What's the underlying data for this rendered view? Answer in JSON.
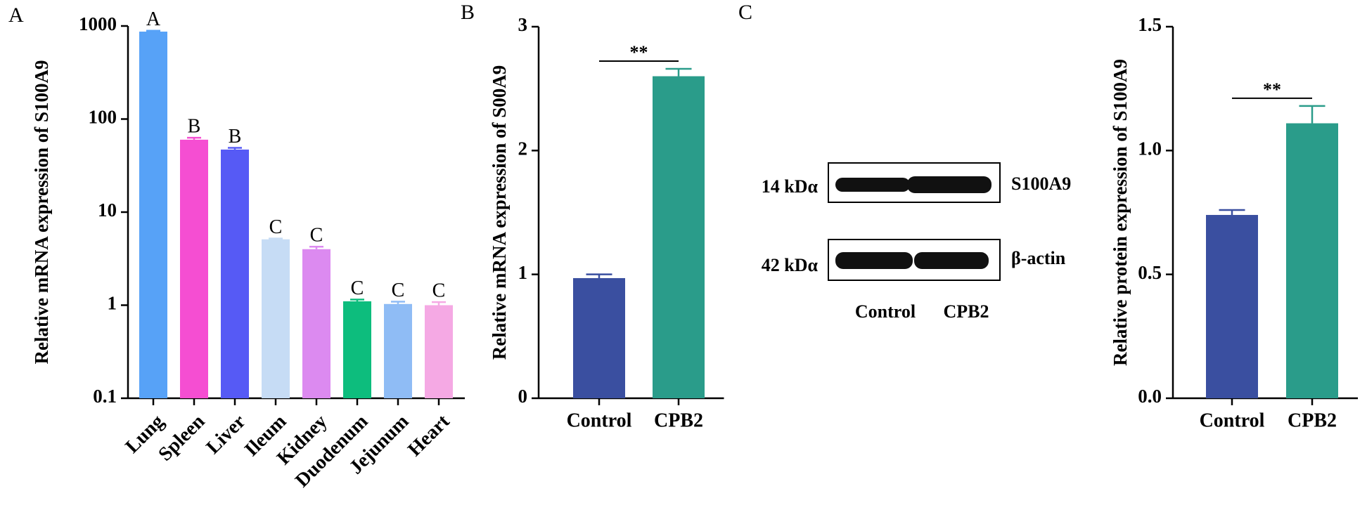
{
  "chart_data": [
    {
      "type": "bar",
      "panel": "A",
      "y_label": "Relative mRNA expression of S100A9",
      "log": true,
      "categories": [
        "Lung",
        "Spleen",
        "Liver",
        "Ileum",
        "Kidney",
        "Duodenum",
        "Jejunum",
        "Heart"
      ],
      "values": [
        870,
        60,
        47,
        5.1,
        4.0,
        1.1,
        1.03,
        1.0
      ],
      "errors": [
        20,
        3,
        2,
        0.1,
        0.25,
        0.05,
        0.06,
        0.08
      ],
      "letters": [
        "A",
        "B",
        "B",
        "C",
        "C",
        "C",
        "C",
        "C"
      ],
      "colors": [
        "#57a2f7",
        "#f54ed2",
        "#565af5",
        "#c6dcf5",
        "#dc8af0",
        "#0dbd7d",
        "#8fbcf5",
        "#f5a9e4"
      ],
      "ylim": [
        0.1,
        1000
      ],
      "yticks": [
        0.1,
        1,
        10,
        100,
        1000
      ]
    },
    {
      "type": "bar",
      "panel": "B",
      "y_label": "Relative mRNA expression of S00A9",
      "categories": [
        "Control",
        "CPB2"
      ],
      "values": [
        0.97,
        2.6
      ],
      "errors": [
        0.03,
        0.06
      ],
      "colors": [
        "#3a4fa0",
        "#2a9c8a"
      ],
      "significance": "**",
      "ylim": [
        0,
        3
      ],
      "yticks": [
        0,
        1,
        2,
        3
      ]
    },
    {
      "type": "bar",
      "y_label": "Relative protein expression of S100A9",
      "categories": [
        "Control",
        "CPB2"
      ],
      "values": [
        0.74,
        1.11
      ],
      "errors": [
        0.02,
        0.07
      ],
      "colors": [
        "#3a4fa0",
        "#2a9c8a"
      ],
      "significance": "**",
      "ylim": [
        0,
        1.5
      ],
      "yticks": [
        {
          "value": 0,
          "label": "0.0"
        },
        0.5,
        {
          "value": 1,
          "label": "1.0"
        },
        1.5
      ]
    }
  ],
  "blot": {
    "panel": "C",
    "rows": [
      {
        "size": "14 kDα",
        "protein": "S100A9"
      },
      {
        "size": "42 kDα",
        "protein": "β-actin"
      }
    ],
    "lanes": [
      "Control",
      "CPB2"
    ]
  }
}
